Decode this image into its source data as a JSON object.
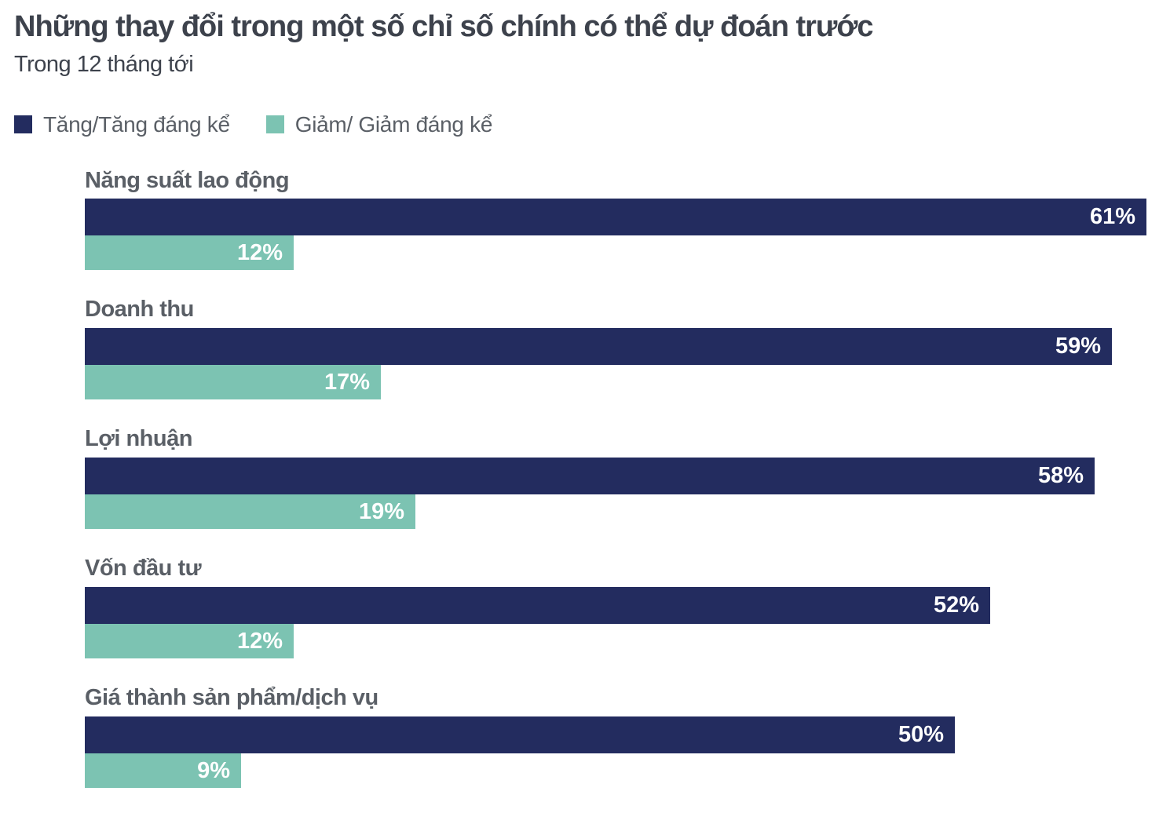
{
  "chart_data": {
    "type": "bar",
    "orientation": "horizontal",
    "title": "Những thay đổi trong một số chỉ số chính có thể dự đoán trước",
    "subtitle": "Trong 12 tháng tới",
    "categories": [
      "Năng suất lao động",
      "Doanh thu",
      "Lợi nhuận",
      "Vốn đầu tư",
      "Giá thành sản phẩm/dịch vụ"
    ],
    "series": [
      {
        "name": "Tăng/Tăng đáng kể",
        "role": "increase",
        "color": "#232c5f",
        "values": [
          61,
          59,
          58,
          52,
          50
        ],
        "labels": [
          "61%",
          "59%",
          "58%",
          "52%",
          "50%"
        ]
      },
      {
        "name": "Giảm/ Giảm đáng kể",
        "role": "decrease",
        "color": "#7cc3b2",
        "values": [
          12,
          17,
          19,
          12,
          9
        ],
        "labels": [
          "12%",
          "17%",
          "19%",
          "12%",
          "9%"
        ]
      }
    ],
    "value_suffix": "%",
    "xlim": [
      0,
      62.3
    ],
    "grid": false,
    "legend_position": "top",
    "value_label_position": "inside-end",
    "value_label_color": "#ffffff",
    "title_color": "#3d424c",
    "label_color": "#5a5f66",
    "background_color": "#ffffff"
  }
}
